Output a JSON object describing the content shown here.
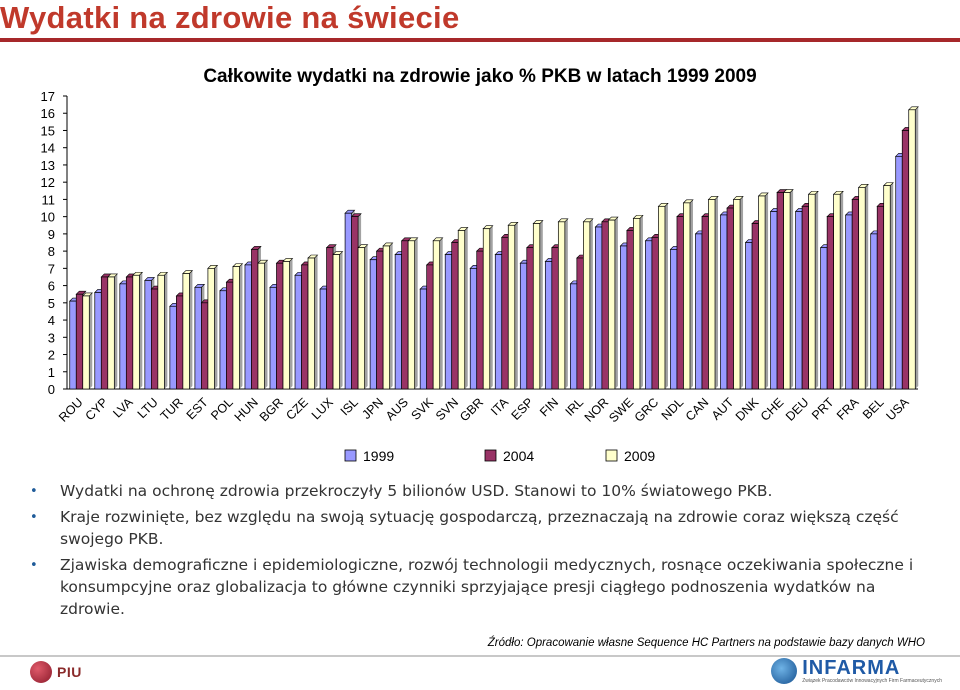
{
  "page": {
    "title": "Wydatki na zdrowie na świecie",
    "title_color": "#c0392b"
  },
  "chart_data": {
    "type": "bar",
    "title": "Całkowite wydatki na zdrowie jako % PKB w latach 1999 2009",
    "xlabel": "",
    "ylabel": "",
    "ylim": [
      0,
      17
    ],
    "yticks": [
      0,
      1,
      2,
      3,
      4,
      5,
      6,
      7,
      8,
      9,
      10,
      11,
      12,
      13,
      14,
      15,
      16,
      17
    ],
    "grid": false,
    "legend_position": "bottom",
    "categories": [
      "ROU",
      "CYP",
      "LVA",
      "LTU",
      "TUR",
      "EST",
      "POL",
      "HUN",
      "BGR",
      "CZE",
      "LUX",
      "ISL",
      "JPN",
      "AUS",
      "SVK",
      "SVN",
      "GBR",
      "ITA",
      "ESP",
      "FIN",
      "IRL",
      "NOR",
      "SWE",
      "GRC",
      "NDL",
      "CAN",
      "AUT",
      "DNK",
      "CHE",
      "DEU",
      "PRT",
      "FRA",
      "BEL",
      "USA"
    ],
    "series": [
      {
        "name": "1999",
        "color": "#9999ff",
        "values": [
          5.1,
          5.6,
          6.1,
          6.3,
          4.8,
          5.9,
          5.7,
          7.2,
          5.9,
          6.6,
          5.8,
          10.2,
          7.5,
          7.8,
          5.8,
          7.8,
          7.0,
          7.8,
          7.3,
          7.4,
          6.1,
          9.4,
          8.3,
          8.6,
          8.1,
          9.0,
          10.1,
          8.5,
          10.3,
          10.3,
          8.2,
          10.1,
          9.0,
          13.5
        ]
      },
      {
        "name": "2004",
        "color": "#993366",
        "values": [
          5.5,
          6.5,
          6.5,
          5.8,
          5.4,
          5.0,
          6.2,
          8.1,
          7.3,
          7.2,
          8.2,
          10.0,
          8.0,
          8.6,
          7.2,
          8.5,
          8.0,
          8.8,
          8.2,
          8.2,
          7.6,
          9.7,
          9.2,
          8.8,
          10.0,
          10.0,
          10.5,
          9.6,
          11.4,
          10.6,
          10.0,
          11.0,
          10.6,
          15.0
        ]
      },
      {
        "name": "2009",
        "color": "#ffffcc",
        "values": [
          5.4,
          6.5,
          6.6,
          6.6,
          6.7,
          7.0,
          7.1,
          7.3,
          7.4,
          7.6,
          7.8,
          8.2,
          8.3,
          8.6,
          8.6,
          9.2,
          9.3,
          9.5,
          9.6,
          9.7,
          9.7,
          9.8,
          9.9,
          10.6,
          10.8,
          11.0,
          11.0,
          11.2,
          11.4,
          11.3,
          11.3,
          11.7,
          11.8,
          16.2
        ]
      }
    ]
  },
  "bullets": [
    "Wydatki na ochronę zdrowia przekroczyły 5 bilionów USD. Stanowi to 10% światowego PKB.",
    "Kraje rozwinięte, bez względu na swoją sytuację gospodarczą, przeznaczają na zdrowie coraz większą część swojego PKB.",
    "Zjawiska demograficzne i epidemiologiczne, rozwój technologii medycznych, rosnące oczekiwania społeczne i konsumpcyjne oraz globalizacja to główne czynniki sprzyjające presji ciągłego podnoszenia wydatków na zdrowie."
  ],
  "source": "Źródło: Opracowanie własne Sequence HC Partners na podstawie bazy danych WHO",
  "logos": {
    "left": "PIU",
    "right": "INFARMA",
    "right_sub": "Związek Pracodawców Innowacyjnych Firm Farmaceutycznych"
  }
}
